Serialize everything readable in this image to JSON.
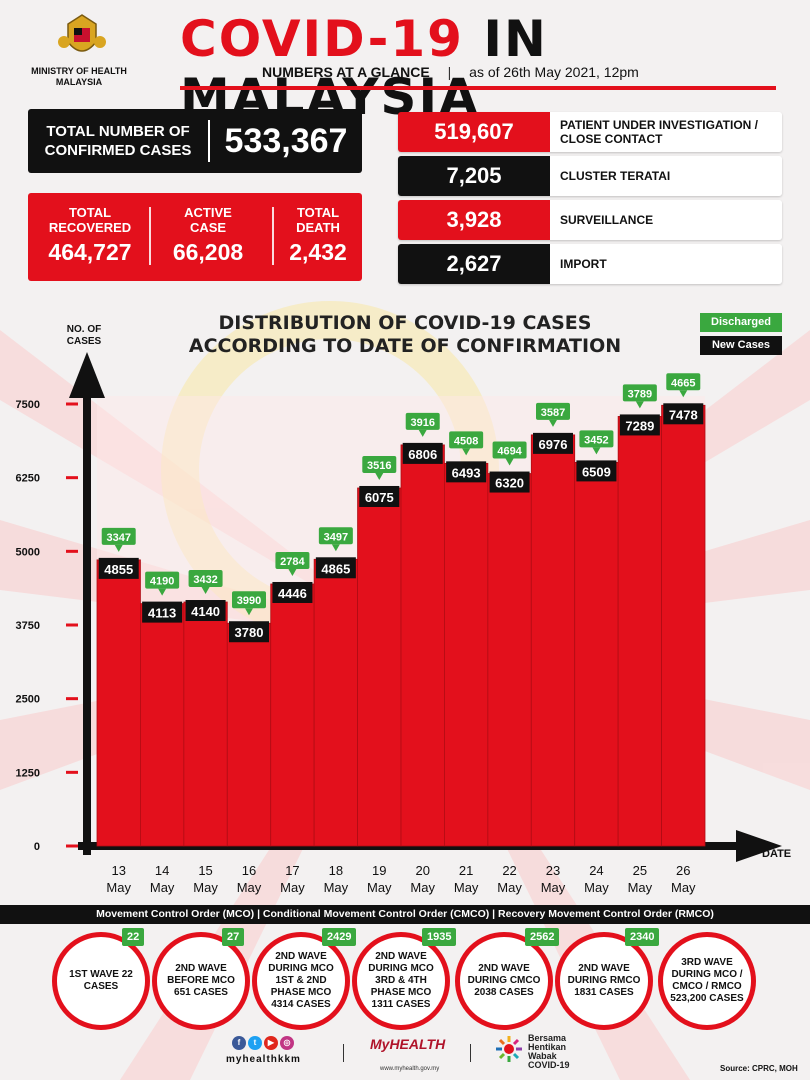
{
  "header": {
    "ministry": "MINISTRY OF HEALTH MALAYSIA",
    "title_red": "COVID-19",
    "title_black": "IN MALAYSIA",
    "subtitle_bold": "NUMBERS AT A GLANCE",
    "subtitle_sep": "|",
    "subtitle_date": "as of 26th May 2021, 12pm"
  },
  "totals": {
    "confirmed_label": "TOTAL NUMBER OF CONFIRMED CASES",
    "confirmed_value": "533,367",
    "recovered_label": "TOTAL RECOVERED",
    "recovered_value": "464,727",
    "active_label": "ACTIVE CASE",
    "active_value": "66,208",
    "death_label": "TOTAL DEATH",
    "death_value": "2,432"
  },
  "breakdown": [
    {
      "value": "519,607",
      "label": "PATIENT UNDER INVESTIGATION / CLOSE CONTACT"
    },
    {
      "value": "7,205",
      "label": "CLUSTER TERATAI"
    },
    {
      "value": "3,928",
      "label": "SURVEILLANCE"
    },
    {
      "value": "2,627",
      "label": "IMPORT"
    }
  ],
  "colors": {
    "red": "#e3101c",
    "black": "#111111",
    "green": "#3aa83f"
  },
  "chart_data": {
    "type": "bar",
    "title": "DISTRIBUTION OF COVID-19 CASES ACCORDING TO DATE OF CONFIRMATION",
    "ylabel": "NO. OF CASES",
    "xlabel": "DATE",
    "ylim": [
      0,
      7500
    ],
    "yticks": [
      0,
      1250,
      2500,
      3750,
      5000,
      6250,
      7500
    ],
    "categories": [
      "13 May",
      "14 May",
      "15 May",
      "16 May",
      "17 May",
      "18 May",
      "19 May",
      "20 May",
      "21 May",
      "22 May",
      "23 May",
      "24 May",
      "25 May",
      "26 May"
    ],
    "legend": [
      "Discharged",
      "New Cases"
    ],
    "series": [
      {
        "name": "New Cases",
        "values": [
          4855,
          4113,
          4140,
          3780,
          4446,
          4865,
          6075,
          6806,
          6493,
          6320,
          6976,
          6509,
          7289,
          7478
        ]
      },
      {
        "name": "Discharged",
        "values": [
          3347,
          4190,
          3432,
          3990,
          2784,
          3497,
          3516,
          3916,
          4508,
          4694,
          3587,
          3452,
          3789,
          4665
        ]
      }
    ]
  },
  "footer": {
    "band": "Movement Control Order (MCO) | Conditional Movement Control Order (CMCO) | Recovery Movement Control Order (RMCO)",
    "waves": [
      {
        "badge": "22",
        "text": "1ST WAVE 22 CASES"
      },
      {
        "badge": "27",
        "text": "2ND WAVE BEFORE MCO 651 CASES"
      },
      {
        "badge": "2429",
        "text": "2ND WAVE DURING MCO 1ST & 2ND PHASE MCO 4314 CASES"
      },
      {
        "badge": "1935",
        "text": "2ND WAVE DURING MCO 3RD & 4TH PHASE MCO 1311 CASES"
      },
      {
        "badge": "2562",
        "text": "2ND WAVE DURING CMCO 2038 CASES"
      },
      {
        "badge": "2340",
        "text": "2ND WAVE DURING RMCO 1831 CASES"
      },
      {
        "badge": "",
        "text": "3RD WAVE DURING MCO / CMCO / RMCO 523,200 CASES"
      }
    ],
    "handle": "myhealthkkm",
    "myhealth": "MyHEALTH",
    "myhealth_url": "www.myhealth.gov.my",
    "bersama": "Bersama Hentikan Wabak COVID-19",
    "source": "Source: CPRC, MOH"
  }
}
